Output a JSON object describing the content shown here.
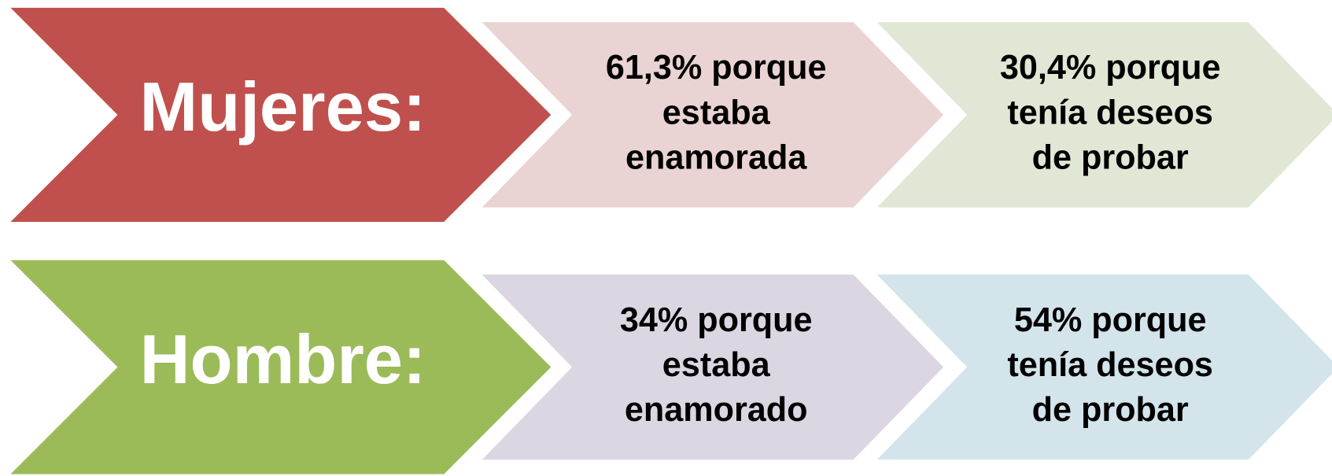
{
  "rows": [
    {
      "label": "Mujeres:",
      "items": [
        {
          "lines": [
            "61,3% porque",
            "estaba",
            "enamorada"
          ]
        },
        {
          "lines": [
            "30,4% porque",
            "tenía deseos",
            "de probar"
          ]
        }
      ]
    },
    {
      "label": "Hombre:",
      "items": [
        {
          "lines": [
            "34% porque",
            "estaba",
            "enamorado"
          ]
        },
        {
          "lines": [
            "54% porque",
            "tenía deseos",
            "de probar"
          ]
        }
      ]
    }
  ]
}
